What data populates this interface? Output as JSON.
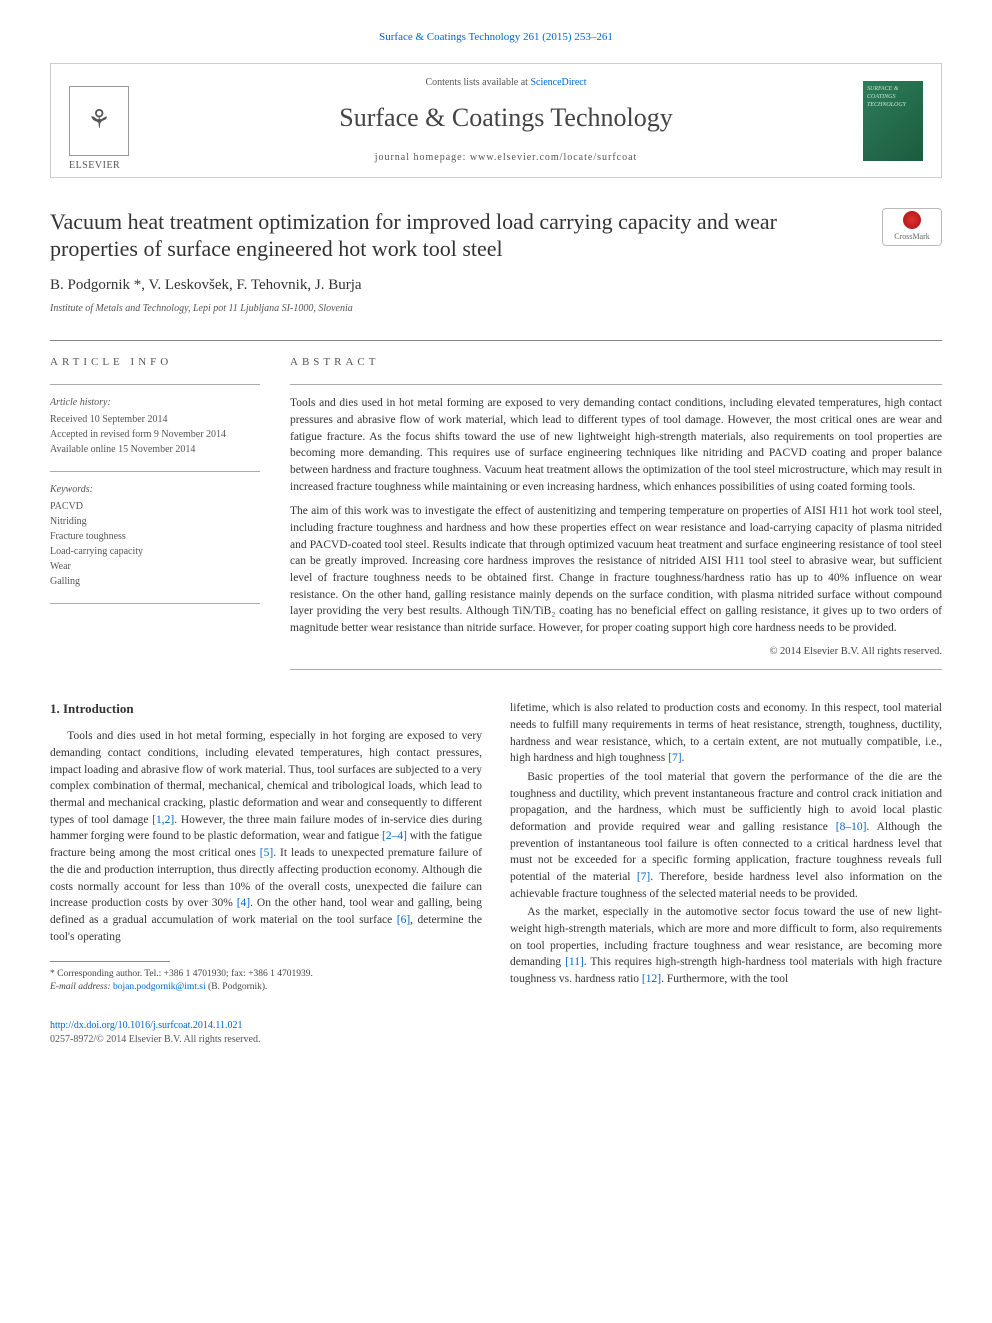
{
  "top_citation": "Surface & Coatings Technology 261 (2015) 253–261",
  "header": {
    "contents_prefix": "Contents lists available at ",
    "contents_link": "ScienceDirect",
    "journal_name": "Surface & Coatings Technology",
    "homepage_label": "journal homepage: ",
    "homepage_url": "www.elsevier.com/locate/surfcoat",
    "publisher": "ELSEVIER",
    "cover_text": "SURFACE & COATINGS TECHNOLOGY"
  },
  "article": {
    "title": "Vacuum heat treatment optimization for improved load carrying capacity and wear properties of surface engineered hot work tool steel",
    "crossmark": "CrossMark",
    "authors_html": "B. Podgornik *, V. Leskovšek, F. Tehovnik, J. Burja",
    "affiliation": "Institute of Metals and Technology, Lepi pot 11 Ljubljana SI-1000, Slovenia"
  },
  "info": {
    "label": "ARTICLE INFO",
    "history_hdr": "Article history:",
    "received": "Received 10 September 2014",
    "accepted": "Accepted in revised form 9 November 2014",
    "online": "Available online 15 November 2014",
    "keywords_hdr": "Keywords:",
    "keywords": [
      "PACVD",
      "Nitriding",
      "Fracture toughness",
      "Load-carrying capacity",
      "Wear",
      "Galling"
    ]
  },
  "abstract": {
    "label": "ABSTRACT",
    "p1": "Tools and dies used in hot metal forming are exposed to very demanding contact conditions, including elevated temperatures, high contact pressures and abrasive flow of work material, which lead to different types of tool damage. However, the most critical ones are wear and fatigue fracture. As the focus shifts toward the use of new lightweight high-strength materials, also requirements on tool properties are becoming more demanding. This requires use of surface engineering techniques like nitriding and PACVD coating and proper balance between hardness and fracture toughness. Vacuum heat treatment allows the optimization of the tool steel microstructure, which may result in increased fracture toughness while maintaining or even increasing hardness, which enhances possibilities of using coated forming tools.",
    "p2": "The aim of this work was to investigate the effect of austenitizing and tempering temperature on properties of AISI H11 hot work tool steel, including fracture toughness and hardness and how these properties effect on wear resistance and load-carrying capacity of plasma nitrided and PACVD-coated tool steel. Results indicate that through optimized vacuum heat treatment and surface engineering resistance of tool steel can be greatly improved. Increasing core hardness improves the resistance of nitrided AISI H11 tool steel to abrasive wear, but sufficient level of fracture toughness needs to be obtained first. Change in fracture toughness/hardness ratio has up to 40% influence on wear resistance. On the other hand, galling resistance mainly depends on the surface condition, with plasma nitrided surface without compound layer providing the very best results. Although TiN/TiB₂ coating has no beneficial effect on galling resistance, it gives up to two orders of magnitude better wear resistance than nitride surface. However, for proper coating support high core hardness needs to be provided.",
    "copyright": "© 2014 Elsevier B.V. All rights reserved."
  },
  "body": {
    "intro_heading": "1. Introduction",
    "left_p1": "Tools and dies used in hot metal forming, especially in hot forging are exposed to very demanding contact conditions, including elevated temperatures, high contact pressures, impact loading and abrasive flow of work material. Thus, tool surfaces are subjected to a very complex combination of thermal, mechanical, chemical and tribological loads, which lead to thermal and mechanical cracking, plastic deformation and wear and consequently to different types of tool damage [1,2]. However, the three main failure modes of in-service dies during hammer forging were found to be plastic deformation, wear and fatigue [2–4] with the fatigue fracture being among the most critical ones [5]. It leads to unexpected premature failure of the die and production interruption, thus directly affecting production economy. Although die costs normally account for less than 10% of the overall costs, unexpected die failure can increase production costs by over 30% [4]. On the other hand, tool wear and galling, being defined as a gradual accumulation of work material on the tool surface [6], determine the tool's operating",
    "right_p1": "lifetime, which is also related to production costs and economy. In this respect, tool material needs to fulfill many requirements in terms of heat resistance, strength, toughness, ductility, hardness and wear resistance, which, to a certain extent, are not mutually compatible, i.e., high hardness and high toughness [7].",
    "right_p2": "Basic properties of the tool material that govern the performance of the die are the toughness and ductility, which prevent instantaneous fracture and control crack initiation and propagation, and the hardness, which must be sufficiently high to avoid local plastic deformation and provide required wear and galling resistance [8–10]. Although the prevention of instantaneous tool failure is often connected to a critical hardness level that must not be exceeded for a specific forming application, fracture toughness reveals full potential of the material [7]. Therefore, beside hardness level also information on the achievable fracture toughness of the selected material needs to be provided.",
    "right_p3": "As the market, especially in the automotive sector focus toward the use of new light-weight high-strength materials, which are more and more difficult to form, also requirements on tool properties, including fracture toughness and wear resistance, are becoming more demanding [11]. This requires high-strength high-hardness tool materials with high fracture toughness vs. hardness ratio [12]. Furthermore, with the tool"
  },
  "footnote": {
    "corr": "* Corresponding author. Tel.: +386 1 4701930; fax: +386 1 4701939.",
    "email_label": "E-mail address: ",
    "email": "bojan.podgornik@imt.si",
    "email_suffix": " (B. Podgornik)."
  },
  "bottom": {
    "doi": "http://dx.doi.org/10.1016/j.surfcoat.2014.11.021",
    "issn_line": "0257-8972/© 2014 Elsevier B.V. All rights reserved."
  },
  "refs": {
    "r12": "[1,2]",
    "r24": "[2–4]",
    "r5": "[5]",
    "r4": "[4]",
    "r6": "[6]",
    "r7": "[7]",
    "r810": "[8–10]",
    "r11": "[11]",
    "r12b": "[12]"
  }
}
